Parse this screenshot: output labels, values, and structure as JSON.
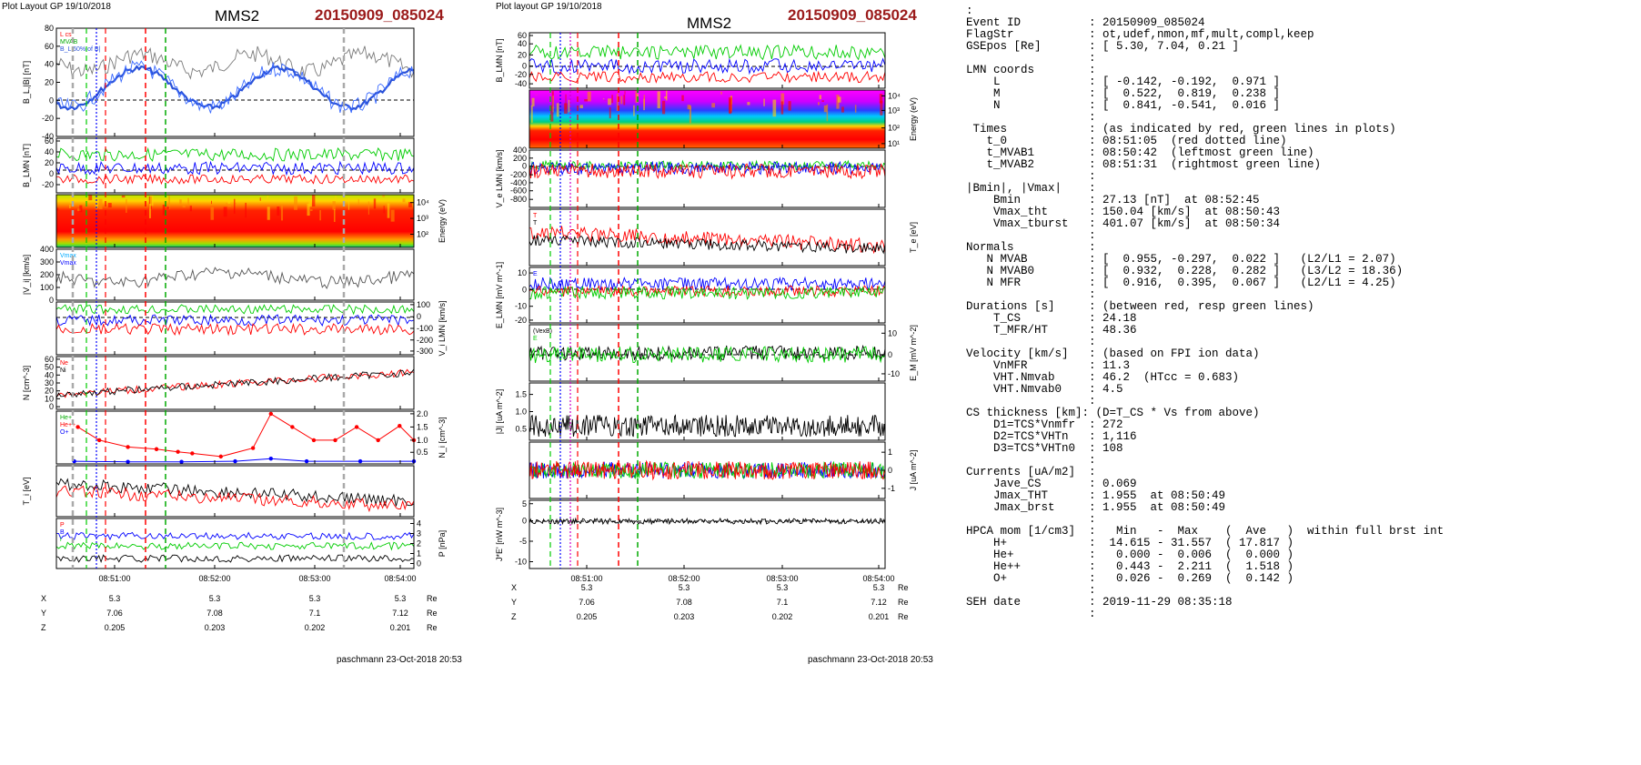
{
  "left": {
    "header": "Plot Layout GP 19/10/2018",
    "mms": "MMS2",
    "event": "20150909_085024",
    "footer": "paschmann 23-Oct-2018 20:53",
    "xtick_labels": [
      "08:51:00",
      "08:52:00",
      "08:53:00",
      "08:54:00"
    ],
    "pos_rows": [
      {
        "name": "X",
        "values": [
          "5.3",
          "5.3",
          "5.3",
          "5.3"
        ],
        "unit": "Re"
      },
      {
        "name": "Y",
        "values": [
          "7.06",
          "7.08",
          "7.1",
          "7.12"
        ],
        "unit": "Re"
      },
      {
        "name": "Z",
        "values": [
          "0.205",
          "0.203",
          "0.202",
          "0.201"
        ],
        "unit": "Re"
      }
    ]
  },
  "middle": {
    "header": "Plot layout GP 19/10/2018",
    "mms": "MMS2",
    "event": "20150909_085024",
    "footer": "paschmann 23-Oct-2018 20:53",
    "xtick_labels": [
      "08:51:00",
      "08:52:00",
      "08:53:00",
      "08:54:00"
    ],
    "pos_rows": [
      {
        "name": "X",
        "values": [
          "5.3",
          "5.3",
          "5.3",
          "5.3"
        ],
        "unit": "Re"
      },
      {
        "name": "Y",
        "values": [
          "7.06",
          "7.08",
          "7.1",
          "7.12"
        ],
        "unit": "Re"
      },
      {
        "name": "Z",
        "values": [
          "0.205",
          "0.203",
          "0.202",
          "0.201"
        ],
        "unit": "Re"
      }
    ]
  },
  "params": {
    "lines": [
      ":",
      "Event ID          : 20150909_085024",
      "FlagStr           : ot,udef,nmon,mf,mult,compl,keep",
      "GSEpos [Re]       : [ 5.30, 7.04, 0.21 ]",
      "                  :",
      "LMN coords        :",
      "    L             : [ -0.142, -0.192,  0.971 ]",
      "    M             : [  0.522,  0.819,  0.238 ]",
      "    N             : [  0.841, -0.541,  0.016 ]",
      "                  :",
      " Times            : (as indicated by red, green lines in plots)",
      "   t_0            : 08:51:05  (red dotted line)",
      "   t_MVAB1        : 08:50:42  (leftmost green line)",
      "   t_MVAB2        : 08:51:31  (rightmost green line)",
      "                  :",
      "|Bmin|, |Vmax|    :",
      "    Bmin          : 27.13 [nT]  at 08:52:45",
      "    Vmax_tht      : 150.04 [km/s]  at 08:50:43",
      "    Vmax_tburst   : 401.07 [km/s]  at 08:50:34",
      "                  :",
      "Normals           :",
      "   N MVAB         : [  0.955, -0.297,  0.022 ]   (L2/L1 = 2.07)",
      "   N MVAB0        : [  0.932,  0.228,  0.282 ]   (L3/L2 = 18.36)",
      "   N MFR          : [  0.916,  0.395,  0.067 ]   (L2/L1 = 4.25)",
      "                  :",
      "Durations [s]     : (between red, resp green lines)",
      "    T_CS          : 24.18",
      "    T_MFR/HT      : 48.36",
      "                  :",
      "Velocity [km/s]   : (based on FPI ion data)",
      "    VnMFR         : 11.3",
      "    VHT.Nmvab     : 46.2  (HTcc = 0.683)",
      "    VHT.Nmvab0    : 4.5",
      "                  :",
      "CS thickness [km]: (D=T_CS * Vs from above)",
      "    D1=TCS*Vnmfr  : 272",
      "    D2=TCS*VHTn   : 1,116",
      "    D3=TCS*VHTn0  : 108",
      "                  :",
      "Currents [uA/m2]  :",
      "    Jave_CS       : 0.069",
      "    Jmax_THT      : 1.955  at 08:50:49",
      "    Jmax_brst     : 1.955  at 08:50:49",
      "                  :",
      "HPCA mom [1/cm3]  :   Min   -  Max    (  Ave   )  within full brst int",
      "    H+            :  14.615 - 31.557  ( 17.817 )",
      "    He+           :   0.000 -  0.006  (  0.000 )",
      "    He++          :   0.443 -  2.211  (  1.518 )",
      "    O+            :   0.026 -  0.269  (  0.142 )",
      "                  :",
      "SEH date          : 2019-11-29 08:35:18",
      "                  :"
    ]
  },
  "chart_data": [
    {
      "type": "line",
      "panel": "left",
      "xtick_labels": [
        "08:51:00",
        "08:52:00",
        "08:53:00",
        "08:54:00"
      ],
      "subplots": [
        {
          "ylabel": "B_L,|B| [nT]",
          "ylim": [
            -40,
            80
          ],
          "yticks": [
            -40,
            -20,
            0,
            20,
            40,
            60,
            80
          ],
          "legend": [
            "L cs",
            "MVAB",
            "B_L 60% of B|"
          ],
          "colors": [
            "#808080",
            "#0000ff",
            "#2a52d9"
          ]
        },
        {
          "ylabel": "B_LMN [nT]",
          "ylim": [
            -20,
            60
          ],
          "yticks": [
            -20,
            0,
            20,
            40,
            60
          ],
          "legend": [
            "B_L",
            "B_M",
            "B_N"
          ],
          "colors": [
            "#00cc00",
            "#0000ff",
            "#ff0000"
          ]
        },
        {
          "type": "heatmap",
          "ylabel": "Energy (eV)",
          "yticks": [
            "10^2",
            "10^3",
            "10^4"
          ]
        },
        {
          "ylabel": "|V_i| [km/s]",
          "ylim": [
            0,
            400
          ],
          "yticks": [
            0,
            100,
            200,
            300,
            400
          ],
          "legend": [
            "Vmax",
            "Vmax"
          ],
          "colors": [
            "#555555"
          ]
        },
        {
          "ylabel": "V_i LMN [km/s]",
          "ylim": [
            -300,
            100
          ],
          "yticks": [
            -300,
            -200,
            -100,
            0,
            100
          ],
          "legend": [
            "V_L",
            "V_M",
            "V_N"
          ],
          "colors": [
            "#00cc00",
            "#0000ff",
            "#ff0000"
          ]
        },
        {
          "ylabel": "N [cm^-3]",
          "ylim": [
            0,
            60
          ],
          "yticks": [
            0,
            10,
            20,
            30,
            40,
            50,
            60
          ],
          "legend": [
            "Ne",
            "Ni"
          ],
          "colors": [
            "#ff0000",
            "#000000"
          ]
        },
        {
          "ylabel": "N_i [cm^-3]",
          "ylim": [
            0.5,
            2.0
          ],
          "yticks": [
            0.5,
            1.0,
            1.5,
            2.0
          ],
          "legend": [
            "He+",
            "He++",
            "O+"
          ],
          "colors": [
            "#00aa00",
            "#ff0000",
            "#0000ff"
          ]
        },
        {
          "ylabel": "T_i [eV]",
          "legend": [],
          "colors": [
            "#000000",
            "#ff0000"
          ]
        },
        {
          "ylabel": "P [nPa]",
          "ylim": [
            0,
            4
          ],
          "yticks": [
            0,
            1,
            2,
            3,
            4
          ],
          "legend": [
            "P",
            "B",
            "i"
          ],
          "colors": [
            "#ff0000",
            "#0000ff",
            "#00cc00"
          ]
        }
      ]
    },
    {
      "type": "line",
      "panel": "middle",
      "xtick_labels": [
        "08:51:00",
        "08:52:00",
        "08:53:00",
        "08:54:00"
      ],
      "subplots": [
        {
          "ylabel": "B_LMN [nT]",
          "ylim": [
            -40,
            60
          ],
          "yticks": [
            -40,
            -20,
            0,
            20,
            40,
            60
          ],
          "colors": [
            "#00cc00",
            "#0000ff",
            "#ff0000"
          ]
        },
        {
          "type": "heatmap",
          "ylabel": "Energy (eV)",
          "yticks": [
            "10^1",
            "10^2",
            "10^3",
            "10^4"
          ]
        },
        {
          "ylabel": "V_e LMN [km/s]",
          "ylim": [
            -800,
            400
          ],
          "yticks": [
            -800,
            -600,
            -400,
            -200,
            0,
            200,
            400
          ],
          "colors": [
            "#00cc00",
            "#0000ff",
            "#ff0000"
          ]
        },
        {
          "ylabel": "T_e [eV]",
          "legend": [
            "T",
            "T"
          ],
          "colors": [
            "#ff0000",
            "#000000"
          ]
        },
        {
          "ylabel": "E_LMN [mV m^-1]",
          "ylim": [
            -20,
            10
          ],
          "yticks": [
            -20,
            -10,
            0,
            10
          ],
          "legend": [
            "E"
          ],
          "colors": [
            "#0000ff",
            "#ff0000",
            "#00cc00"
          ]
        },
        {
          "ylabel": "E_M [mV m^-1]",
          "ylim": [
            -10,
            10
          ],
          "yticks": [
            -10,
            0,
            10
          ],
          "legend": [
            "(VexB)",
            "E"
          ],
          "colors": [
            "#000000",
            "#00cc00"
          ]
        },
        {
          "ylabel": "|J| [uA m^-2]",
          "ylim": [
            0,
            1.5
          ],
          "yticks": [
            0.5,
            1.0,
            1.5
          ],
          "colors": [
            "#000000"
          ]
        },
        {
          "ylabel": "J [uA m^-2]",
          "ylim": [
            -1,
            1
          ],
          "yticks": [
            -1,
            0,
            1
          ],
          "colors": [
            "#ff0000",
            "#00cc00",
            "#0000ff"
          ]
        },
        {
          "ylabel": "J*E' [nW m^-3]",
          "ylim": [
            -10,
            5
          ],
          "yticks": [
            -10,
            -5,
            0,
            5
          ],
          "colors": [
            "#000000"
          ]
        }
      ]
    }
  ]
}
